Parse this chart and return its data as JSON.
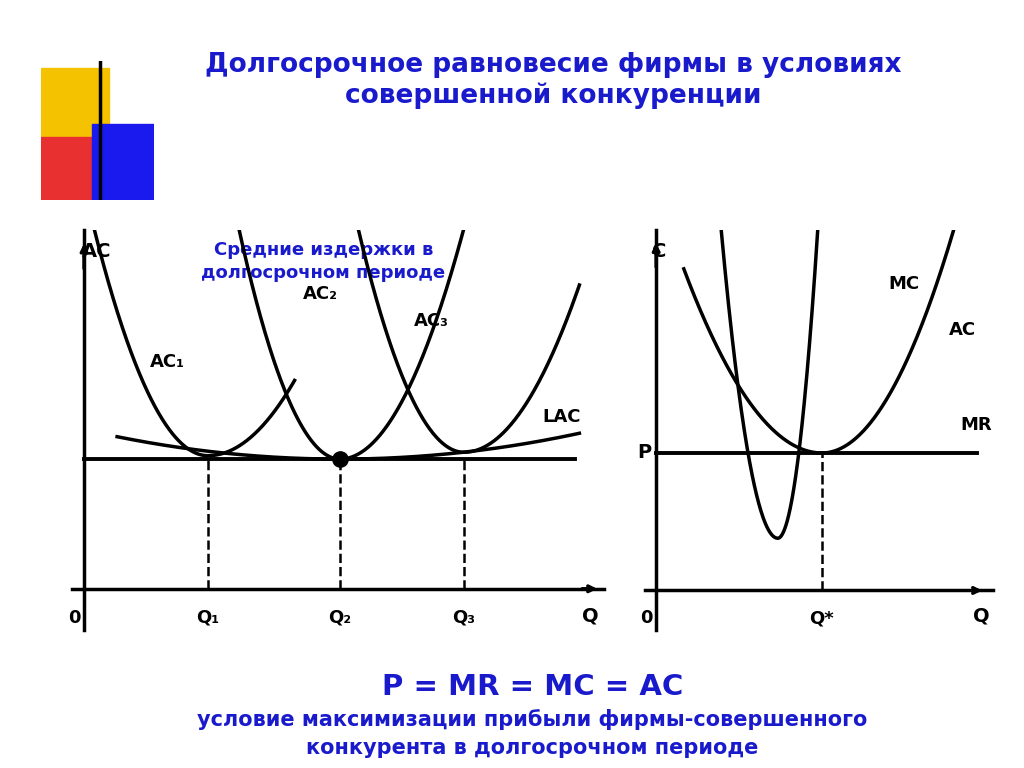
{
  "title_main": "Долгосрочное равновесие фирмы в условиях\nсовершенной конкуренции",
  "subtitle_left": "Средние издержки в\nдолгосрочном периоде",
  "formula_text": "P = MR = MC = AC",
  "formula_sub": "условие максимизации прибыли фирмы-совершенного\nконкурента в долгосрочном периоде",
  "title_color": "#1a1acd",
  "bg_color": "#ffffff",
  "curve_color": "#000000",
  "deco_yellow": "#f5c200",
  "deco_red": "#e83030",
  "deco_blue": "#1a1aee"
}
